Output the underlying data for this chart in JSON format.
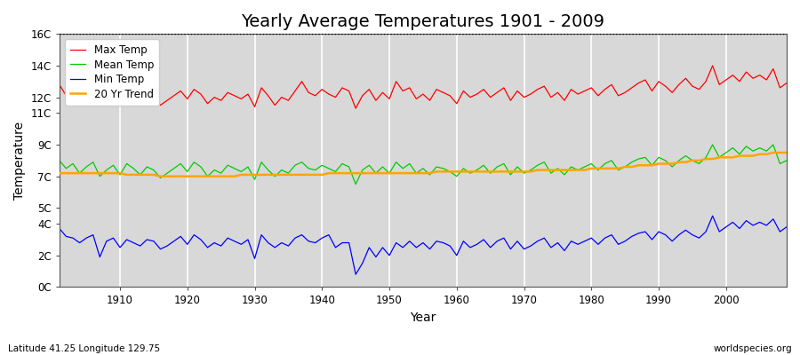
{
  "title": "Yearly Average Temperatures 1901 - 2009",
  "xlabel": "Year",
  "ylabel": "Temperature",
  "subtitle_left": "Latitude 41.25 Longitude 129.75",
  "subtitle_right": "worldspecies.org",
  "years": [
    1901,
    1902,
    1903,
    1904,
    1905,
    1906,
    1907,
    1908,
    1909,
    1910,
    1911,
    1912,
    1913,
    1914,
    1915,
    1916,
    1917,
    1918,
    1919,
    1920,
    1921,
    1922,
    1923,
    1924,
    1925,
    1926,
    1927,
    1928,
    1929,
    1930,
    1931,
    1932,
    1933,
    1934,
    1935,
    1936,
    1937,
    1938,
    1939,
    1940,
    1941,
    1942,
    1943,
    1944,
    1945,
    1946,
    1947,
    1948,
    1949,
    1950,
    1951,
    1952,
    1953,
    1954,
    1955,
    1956,
    1957,
    1958,
    1959,
    1960,
    1961,
    1962,
    1963,
    1964,
    1965,
    1966,
    1967,
    1968,
    1969,
    1970,
    1971,
    1972,
    1973,
    1974,
    1975,
    1976,
    1977,
    1978,
    1979,
    1980,
    1981,
    1982,
    1983,
    1984,
    1985,
    1986,
    1987,
    1988,
    1989,
    1990,
    1991,
    1992,
    1993,
    1994,
    1995,
    1996,
    1997,
    1998,
    1999,
    2000,
    2001,
    2002,
    2003,
    2004,
    2005,
    2006,
    2007,
    2008,
    2009
  ],
  "max_temp": [
    12.8,
    12.1,
    12.3,
    11.8,
    12.1,
    12.4,
    11.5,
    11.9,
    12.2,
    11.6,
    12.5,
    12.0,
    11.7,
    12.3,
    12.0,
    11.5,
    11.8,
    12.1,
    12.4,
    11.9,
    12.5,
    12.2,
    11.6,
    12.0,
    11.8,
    12.3,
    12.1,
    11.9,
    12.2,
    11.4,
    12.6,
    12.1,
    11.5,
    12.0,
    11.8,
    12.4,
    13.0,
    12.3,
    12.1,
    12.5,
    12.2,
    12.0,
    12.6,
    12.4,
    11.3,
    12.1,
    12.5,
    11.8,
    12.3,
    11.9,
    13.0,
    12.4,
    12.6,
    11.9,
    12.2,
    11.8,
    12.5,
    12.3,
    12.1,
    11.6,
    12.4,
    12.0,
    12.2,
    12.5,
    12.0,
    12.3,
    12.6,
    11.8,
    12.4,
    12.0,
    12.2,
    12.5,
    12.7,
    12.0,
    12.3,
    11.8,
    12.5,
    12.2,
    12.4,
    12.6,
    12.1,
    12.5,
    12.8,
    12.1,
    12.3,
    12.6,
    12.9,
    13.1,
    12.4,
    13.0,
    12.7,
    12.3,
    12.8,
    13.2,
    12.7,
    12.5,
    13.0,
    14.0,
    12.8,
    13.1,
    13.4,
    13.0,
    13.6,
    13.2,
    13.4,
    13.1,
    13.8,
    12.6,
    12.9
  ],
  "mean_temp": [
    8.0,
    7.5,
    7.8,
    7.2,
    7.6,
    7.9,
    7.0,
    7.4,
    7.7,
    7.1,
    7.8,
    7.5,
    7.1,
    7.6,
    7.4,
    6.9,
    7.2,
    7.5,
    7.8,
    7.3,
    7.9,
    7.6,
    7.0,
    7.4,
    7.2,
    7.7,
    7.5,
    7.3,
    7.6,
    6.8,
    7.9,
    7.4,
    7.0,
    7.4,
    7.2,
    7.7,
    7.9,
    7.5,
    7.4,
    7.7,
    7.5,
    7.3,
    7.8,
    7.6,
    6.5,
    7.4,
    7.7,
    7.2,
    7.6,
    7.2,
    7.9,
    7.5,
    7.8,
    7.2,
    7.5,
    7.1,
    7.6,
    7.5,
    7.3,
    7.0,
    7.5,
    7.2,
    7.4,
    7.7,
    7.2,
    7.6,
    7.8,
    7.1,
    7.6,
    7.2,
    7.4,
    7.7,
    7.9,
    7.2,
    7.5,
    7.1,
    7.6,
    7.4,
    7.6,
    7.8,
    7.4,
    7.8,
    8.0,
    7.4,
    7.6,
    7.9,
    8.1,
    8.2,
    7.7,
    8.2,
    8.0,
    7.6,
    8.0,
    8.3,
    8.0,
    7.8,
    8.2,
    9.0,
    8.2,
    8.5,
    8.8,
    8.4,
    8.9,
    8.6,
    8.8,
    8.6,
    9.0,
    7.8,
    8.0
  ],
  "min_temp": [
    3.7,
    3.2,
    3.1,
    2.8,
    3.1,
    3.3,
    1.9,
    2.9,
    3.1,
    2.5,
    3.0,
    2.8,
    2.6,
    3.0,
    2.9,
    2.4,
    2.6,
    2.9,
    3.2,
    2.7,
    3.3,
    3.0,
    2.5,
    2.8,
    2.6,
    3.1,
    2.9,
    2.7,
    3.0,
    1.8,
    3.3,
    2.8,
    2.5,
    2.8,
    2.6,
    3.1,
    3.3,
    2.9,
    2.8,
    3.1,
    3.3,
    2.5,
    2.8,
    2.8,
    0.8,
    1.5,
    2.5,
    1.9,
    2.5,
    2.0,
    2.8,
    2.5,
    2.9,
    2.5,
    2.8,
    2.4,
    2.9,
    2.8,
    2.6,
    2.0,
    2.9,
    2.5,
    2.7,
    3.0,
    2.5,
    2.9,
    3.1,
    2.4,
    2.9,
    2.4,
    2.6,
    2.9,
    3.1,
    2.5,
    2.8,
    2.3,
    2.9,
    2.7,
    2.9,
    3.1,
    2.7,
    3.1,
    3.3,
    2.7,
    2.9,
    3.2,
    3.4,
    3.5,
    3.0,
    3.5,
    3.3,
    2.9,
    3.3,
    3.6,
    3.3,
    3.1,
    3.5,
    4.5,
    3.5,
    3.8,
    4.1,
    3.7,
    4.2,
    3.9,
    4.1,
    3.9,
    4.3,
    3.5,
    3.8
  ],
  "trend_20yr": [
    7.2,
    7.2,
    7.2,
    7.2,
    7.2,
    7.2,
    7.2,
    7.2,
    7.2,
    7.2,
    7.1,
    7.1,
    7.1,
    7.1,
    7.1,
    7.0,
    7.0,
    7.0,
    7.0,
    7.0,
    7.0,
    7.0,
    7.0,
    7.0,
    7.0,
    7.0,
    7.0,
    7.1,
    7.1,
    7.1,
    7.1,
    7.1,
    7.1,
    7.1,
    7.1,
    7.1,
    7.1,
    7.1,
    7.1,
    7.1,
    7.2,
    7.2,
    7.2,
    7.2,
    7.2,
    7.2,
    7.2,
    7.2,
    7.2,
    7.2,
    7.2,
    7.2,
    7.2,
    7.2,
    7.2,
    7.2,
    7.3,
    7.3,
    7.3,
    7.3,
    7.3,
    7.3,
    7.3,
    7.3,
    7.3,
    7.3,
    7.3,
    7.3,
    7.3,
    7.3,
    7.3,
    7.4,
    7.4,
    7.4,
    7.4,
    7.4,
    7.4,
    7.4,
    7.4,
    7.5,
    7.5,
    7.5,
    7.5,
    7.5,
    7.6,
    7.6,
    7.7,
    7.7,
    7.7,
    7.8,
    7.8,
    7.8,
    7.9,
    7.9,
    8.0,
    8.0,
    8.1,
    8.1,
    8.2,
    8.2,
    8.2,
    8.3,
    8.3,
    8.3,
    8.4,
    8.4,
    8.5,
    8.5,
    8.5
  ],
  "ylim": [
    0,
    16
  ],
  "ytick_vals": [
    0,
    2,
    4,
    5,
    7,
    9,
    11,
    12,
    14,
    16
  ],
  "ytick_labels": [
    "0C",
    "2C",
    "4C",
    "5C",
    "7C",
    "9C",
    "11C",
    "12C",
    "14C",
    "16C"
  ],
  "bg_color": "#ffffff",
  "plot_bg_color": "#d8d8d8",
  "max_color": "#ff0000",
  "mean_color": "#00cc00",
  "min_color": "#0000ff",
  "trend_color": "#ffa500",
  "grid_color": "#ffffff",
  "dotted_line_y": 16,
  "title_fontsize": 14,
  "axis_label_fontsize": 10,
  "tick_label_fontsize": 8.5,
  "legend_fontsize": 8.5
}
